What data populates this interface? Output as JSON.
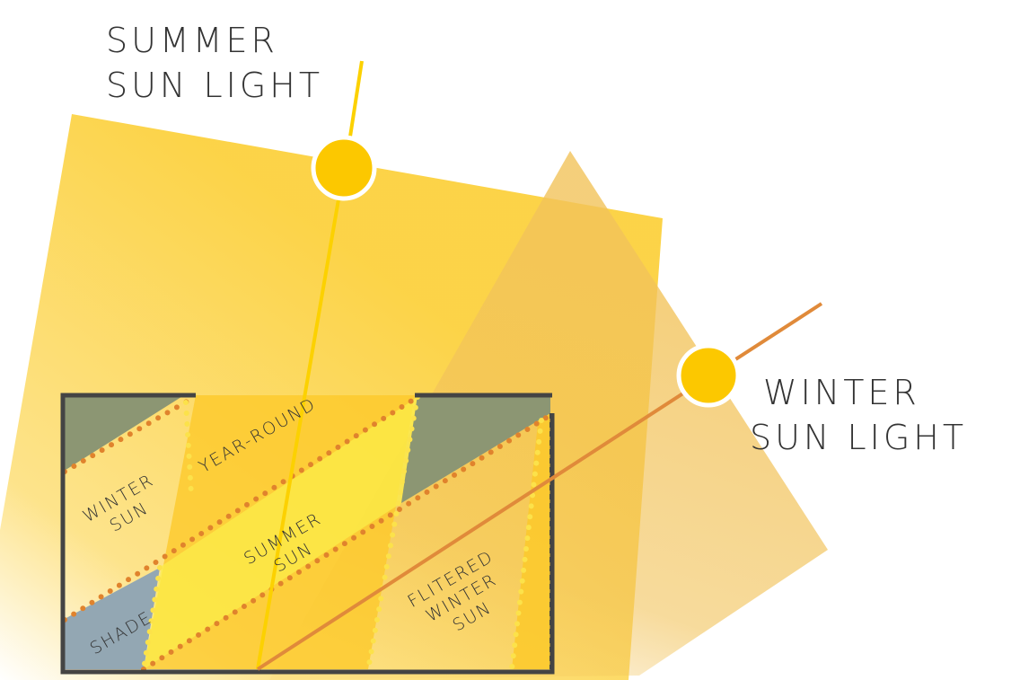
{
  "labels": {
    "summer_light": [
      "SUMMER",
      "SUN LIGHT"
    ],
    "winter_light": [
      "WINTER",
      "SUN LIGHT"
    ],
    "winter_sun": [
      "WINTER",
      "SUN"
    ],
    "year_round": "YEAR-ROUND",
    "summer_sun": [
      "SUMMER",
      "SUN"
    ],
    "shade": "SHADE",
    "filtered_winter_sun": [
      "FLITERED",
      "WINTER",
      "SUN"
    ]
  }
}
